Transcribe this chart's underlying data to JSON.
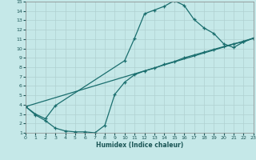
{
  "xlabel": "Humidex (Indice chaleur)",
  "bg_color": "#c5e8e8",
  "grid_color": "#b0d0d0",
  "line_color": "#1a6e6e",
  "xlim": [
    0,
    23
  ],
  "ylim": [
    1,
    15
  ],
  "xticks": [
    0,
    1,
    2,
    3,
    4,
    5,
    6,
    7,
    8,
    9,
    10,
    11,
    12,
    13,
    14,
    15,
    16,
    17,
    18,
    19,
    20,
    21,
    22,
    23
  ],
  "yticks": [
    1,
    2,
    3,
    4,
    5,
    6,
    7,
    8,
    9,
    10,
    11,
    12,
    13,
    14,
    15
  ],
  "line1_x": [
    0,
    1,
    2,
    3,
    10,
    11,
    12,
    13,
    14,
    15,
    16,
    17,
    18,
    19,
    20,
    21,
    22,
    23
  ],
  "line1_y": [
    3.8,
    3.0,
    2.5,
    3.9,
    8.7,
    11.1,
    13.7,
    14.1,
    14.5,
    15.1,
    14.6,
    13.1,
    12.2,
    11.6,
    10.5,
    10.1,
    10.7,
    11.1
  ],
  "line2_x": [
    0,
    23
  ],
  "line2_y": [
    3.8,
    11.1
  ],
  "line3_x": [
    0,
    1,
    2,
    3,
    4,
    5,
    6,
    7,
    8,
    9,
    10,
    11,
    12,
    13,
    14,
    15,
    16,
    17,
    18,
    19,
    20,
    21,
    22,
    23
  ],
  "line3_y": [
    3.8,
    2.9,
    2.3,
    1.5,
    1.2,
    1.1,
    1.1,
    1.0,
    1.8,
    5.1,
    6.4,
    7.2,
    7.6,
    7.9,
    8.3,
    8.6,
    9.0,
    9.3,
    9.6,
    9.9,
    10.2,
    10.5,
    10.7,
    11.1
  ]
}
